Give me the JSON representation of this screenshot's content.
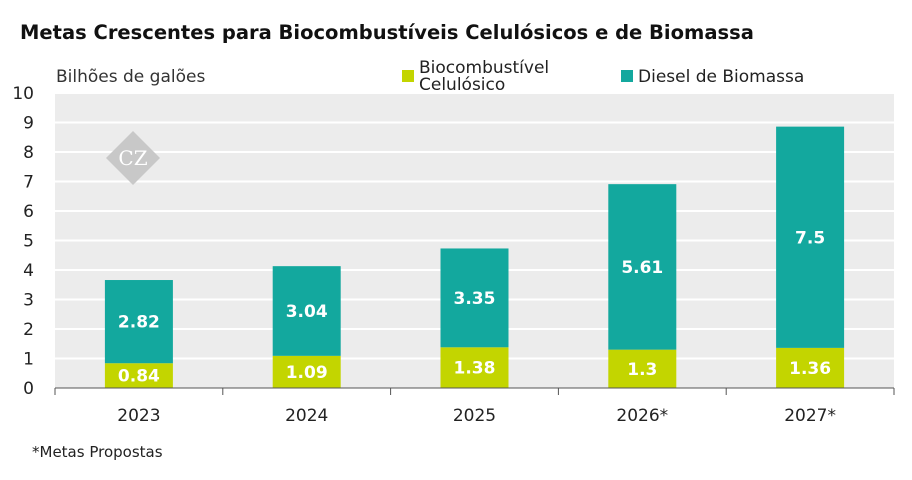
{
  "colors": {
    "celulosico": "#c3d500",
    "biomassa": "#13a89e",
    "plot_bg": "#ececec",
    "watermark": "#c8c8c8"
  },
  "watermark_text": "CZ",
  "footnote": "*Metas Propostas",
  "chart_data": {
    "type": "bar",
    "stacked": true,
    "title": "Metas Crescentes para Biocombustíveis Celulósicos e de Biomassa",
    "ylabel": "Bilhões de galões",
    "xlabel": "",
    "ylim": [
      0,
      10
    ],
    "yticks": [
      0,
      1,
      2,
      3,
      4,
      5,
      6,
      7,
      8,
      9,
      10
    ],
    "grid": true,
    "legend_position": "top-right",
    "categories": [
      "2023",
      "2024",
      "2025",
      "2026*",
      "2027*"
    ],
    "series": [
      {
        "name": "Biocombustível Celulósico",
        "name_lines": [
          "Biocombustível",
          "Celulósico"
        ],
        "color_key": "celulosico",
        "values": [
          0.84,
          1.09,
          1.38,
          1.3,
          1.36
        ]
      },
      {
        "name": "Diesel de Biomassa",
        "name_lines": [
          "Diesel de Biomassa"
        ],
        "color_key": "biomassa",
        "values": [
          2.82,
          3.04,
          3.35,
          5.61,
          7.5
        ]
      }
    ]
  }
}
